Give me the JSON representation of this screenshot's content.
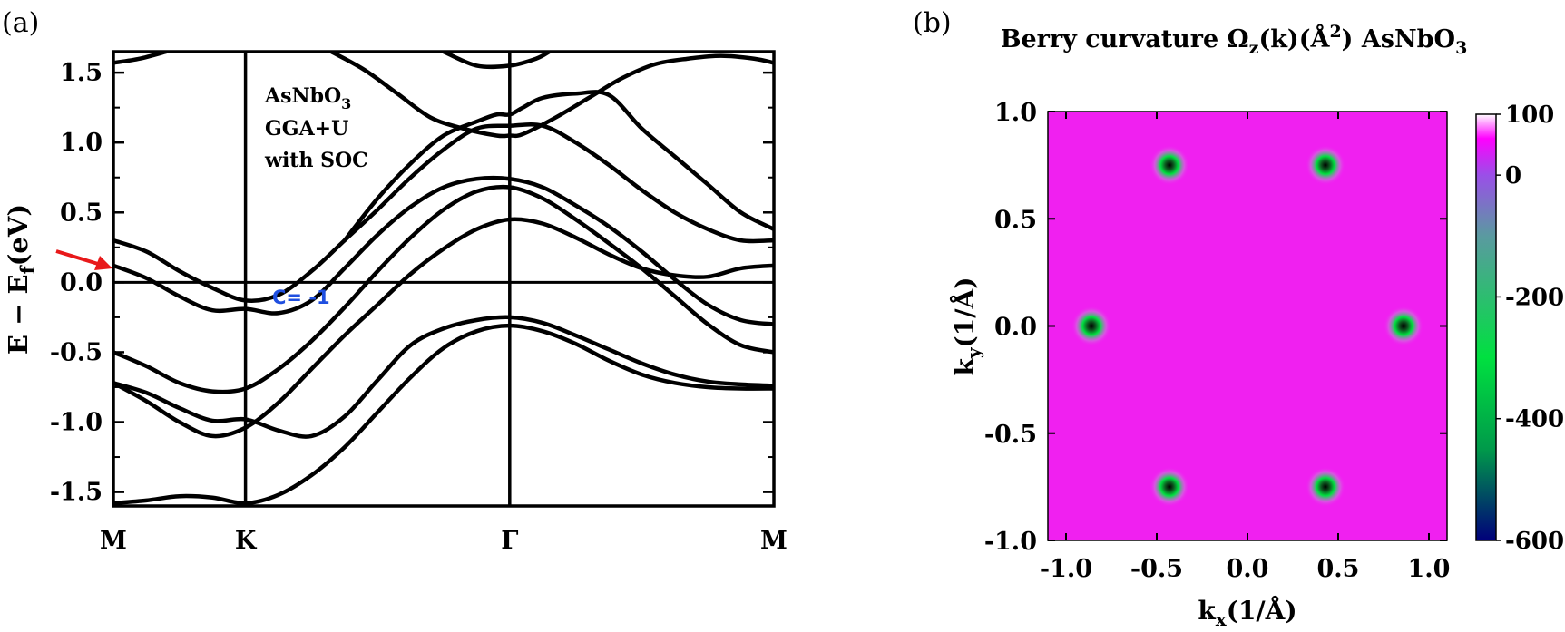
{
  "figure": {
    "panel_a_label": "(a)",
    "panel_b_label": "(b)"
  },
  "chart_data": [
    {
      "type": "line",
      "panel": "(a)",
      "title": "",
      "ylabel_main": "E − E",
      "ylabel_sub": "f",
      "ylabel_tail": "(eV)",
      "xlabel": "",
      "ylim": [
        -1.6,
        1.65
      ],
      "yticks": [
        -1.5,
        -1.0,
        -0.5,
        0.0,
        0.5,
        1.0,
        1.5
      ],
      "ytick_labels": [
        "-1.5",
        "-1.0",
        "-0.5",
        "0.0",
        "0.5",
        "1.0",
        "1.5"
      ],
      "kpath": [
        {
          "label": "M",
          "pos": 0
        },
        {
          "label": "K",
          "pos": 0.2
        },
        {
          "label": "Γ",
          "pos": 0.6
        },
        {
          "label": "M",
          "pos": 1
        }
      ],
      "fermi_level": 0.0,
      "grid": false,
      "legend": "none",
      "annotation": {
        "material": "AsNbO",
        "material_sub": "3",
        "method": "GGA+U",
        "soc": "with SOC",
        "chern": "C= -1"
      },
      "arrow_at": {
        "k": 0.0,
        "E": 0.1
      },
      "colors": {
        "bands": "#000000",
        "arrow": "#e8191a",
        "chern": "#1f4fe0"
      },
      "series": [
        {
          "x": [
            0,
            0.05,
            0.1,
            0.15,
            0.2,
            0.25,
            0.3,
            0.35,
            0.4,
            0.45,
            0.5,
            0.55,
            0.6,
            0.65,
            0.7,
            0.75,
            0.8,
            0.85,
            0.9,
            0.95,
            1.0
          ],
          "y": [
            -1.58,
            -1.56,
            -1.53,
            -1.54,
            -1.58,
            -1.52,
            -1.38,
            -1.18,
            -0.93,
            -0.68,
            -0.47,
            -0.35,
            -0.31,
            -0.35,
            -0.44,
            -0.56,
            -0.66,
            -0.72,
            -0.75,
            -0.76,
            -0.76
          ]
        },
        {
          "x": [
            0,
            0.05,
            0.1,
            0.15,
            0.2,
            0.25,
            0.3,
            0.35,
            0.4,
            0.45,
            0.5,
            0.55,
            0.6,
            0.65,
            0.7,
            0.75,
            0.8,
            0.85,
            0.9,
            0.95,
            1.0
          ],
          "y": [
            -0.72,
            -0.85,
            -1.0,
            -1.1,
            -1.04,
            -0.86,
            -0.62,
            -0.38,
            -0.16,
            0.06,
            0.24,
            0.38,
            0.45,
            0.42,
            0.32,
            0.2,
            0.1,
            0.05,
            0.04,
            0.1,
            0.12
          ]
        },
        {
          "x": [
            0,
            0.05,
            0.1,
            0.15,
            0.2,
            0.25,
            0.3,
            0.35,
            0.4,
            0.45,
            0.5,
            0.55,
            0.6,
            0.65,
            0.7,
            0.75,
            0.8,
            0.85,
            0.9,
            0.95,
            1.0
          ],
          "y": [
            -0.72,
            -0.79,
            -0.9,
            -0.99,
            -0.98,
            -1.06,
            -1.1,
            -0.96,
            -0.7,
            -0.45,
            -0.33,
            -0.27,
            -0.25,
            -0.29,
            -0.38,
            -0.48,
            -0.58,
            -0.66,
            -0.71,
            -0.73,
            -0.74
          ]
        },
        {
          "x": [
            0,
            0.05,
            0.1,
            0.15,
            0.2,
            0.25,
            0.3,
            0.35,
            0.4,
            0.45,
            0.5,
            0.55,
            0.6,
            0.65,
            0.7,
            0.75,
            0.8,
            0.85,
            0.9,
            0.95,
            1.0
          ],
          "y": [
            -0.5,
            -0.6,
            -0.72,
            -0.78,
            -0.76,
            -0.62,
            -0.42,
            -0.18,
            0.08,
            0.32,
            0.52,
            0.65,
            0.68,
            0.6,
            0.45,
            0.28,
            0.1,
            -0.1,
            -0.3,
            -0.45,
            -0.5
          ]
        },
        {
          "x": [
            0,
            0.05,
            0.1,
            0.15,
            0.2,
            0.25,
            0.3,
            0.35,
            0.4,
            0.45,
            0.5,
            0.55,
            0.6,
            0.65,
            0.7,
            0.75,
            0.8,
            0.85,
            0.9,
            0.95,
            1.0
          ],
          "y": [
            0.12,
            0.03,
            -0.1,
            -0.2,
            -0.19,
            -0.22,
            -0.13,
            0.1,
            0.34,
            0.54,
            0.68,
            0.74,
            0.74,
            0.68,
            0.55,
            0.4,
            0.22,
            0.02,
            -0.16,
            -0.27,
            -0.3
          ]
        },
        {
          "x": [
            0,
            0.05,
            0.1,
            0.15,
            0.2,
            0.25,
            0.3,
            0.35,
            0.4,
            0.45,
            0.5,
            0.55,
            0.6,
            0.65,
            0.7,
            0.75,
            0.8,
            0.85,
            0.9,
            0.95,
            1.0
          ],
          "y": [
            0.3,
            0.22,
            0.08,
            -0.04,
            -0.13,
            -0.09,
            0.08,
            0.3,
            0.52,
            0.75,
            0.95,
            1.1,
            1.12,
            1.12,
            1.0,
            0.84,
            0.66,
            0.5,
            0.38,
            0.3,
            0.3
          ]
        },
        {
          "x": [
            0.33,
            0.38,
            0.43,
            0.48,
            0.53,
            0.58,
            0.6,
            0.62,
            0.67,
            0.72,
            0.77,
            0.82,
            0.87,
            0.92,
            0.97,
            1.0
          ],
          "y": [
            1.65,
            1.52,
            1.35,
            1.18,
            1.1,
            1.05,
            1.05,
            1.06,
            1.18,
            1.32,
            1.46,
            1.56,
            1.6,
            1.62,
            1.6,
            1.57
          ]
        },
        {
          "x": [
            0.35,
            0.4,
            0.45,
            0.5,
            0.55,
            0.58,
            0.6,
            0.62,
            0.65,
            0.7,
            0.75,
            0.8,
            0.85,
            0.9,
            0.95,
            1.0
          ],
          "y": [
            0.3,
            0.6,
            0.85,
            1.05,
            1.15,
            1.2,
            1.2,
            1.25,
            1.32,
            1.35,
            1.34,
            1.1,
            0.9,
            0.7,
            0.5,
            0.38
          ]
        },
        {
          "x": [
            0,
            0.04,
            0.08
          ],
          "y": [
            1.57,
            1.6,
            1.65
          ]
        },
        {
          "x": [
            0.5,
            0.55,
            0.6,
            0.64,
            0.66
          ],
          "y": [
            1.65,
            1.55,
            1.55,
            1.6,
            1.65
          ]
        }
      ]
    },
    {
      "type": "heatmap",
      "panel": "(b)",
      "title_prefix": "Berry curvature Ω",
      "title_sub": "z",
      "title_mid": "(k)(Å",
      "title_sup": "2",
      "title_mid2": ") AsNbO",
      "title_sub2": "3",
      "xlabel_main": "k",
      "xlabel_sub": "x",
      "xlabel_tail": "(1/Å)",
      "ylabel_main": "k",
      "ylabel_sub": "y",
      "ylabel_tail": "(1/Å)",
      "xlim": [
        -1.1,
        1.1
      ],
      "ylim": [
        -1.0,
        1.0
      ],
      "xticks": [
        -1.0,
        -0.5,
        0.0,
        0.5,
        1.0
      ],
      "xtick_labels": [
        "-1.0",
        "-0.5",
        "0.0",
        "0.5",
        "1.0"
      ],
      "yticks": [
        -1.0,
        -0.5,
        0.0,
        0.5,
        1.0
      ],
      "ytick_labels": [
        "-1.0",
        "-0.5",
        "0.0",
        "0.5",
        "1.0"
      ],
      "background_value": 70,
      "hotspots": [
        {
          "kx": -0.43,
          "ky": 0.75,
          "value": -600
        },
        {
          "kx": 0.43,
          "ky": 0.75,
          "value": -600
        },
        {
          "kx": -0.86,
          "ky": 0.0,
          "value": -600
        },
        {
          "kx": 0.86,
          "ky": 0.0,
          "value": -600
        },
        {
          "kx": -0.43,
          "ky": -0.75,
          "value": -600
        },
        {
          "kx": 0.43,
          "ky": -0.75,
          "value": -600
        }
      ],
      "colorbar": {
        "range": [
          -600,
          100
        ],
        "ticks": [
          100,
          0,
          -200,
          -400,
          -600
        ],
        "tick_labels": [
          "100",
          "0",
          "-200",
          "-400",
          "-600"
        ],
        "stops": [
          {
            "v": 100,
            "color": "#ffffff"
          },
          {
            "v": 60,
            "color": "#ff00ff"
          },
          {
            "v": 0,
            "color": "#9a4fe8"
          },
          {
            "v": -100,
            "color": "#5a9aa0"
          },
          {
            "v": -300,
            "color": "#00e040"
          },
          {
            "v": -450,
            "color": "#009a4a"
          },
          {
            "v": -600,
            "color": "#00007a"
          }
        ]
      },
      "colors": {
        "background": "#f020f0",
        "spot_ring": "#00e040",
        "spot_core": "#0a3a0a"
      }
    }
  ]
}
